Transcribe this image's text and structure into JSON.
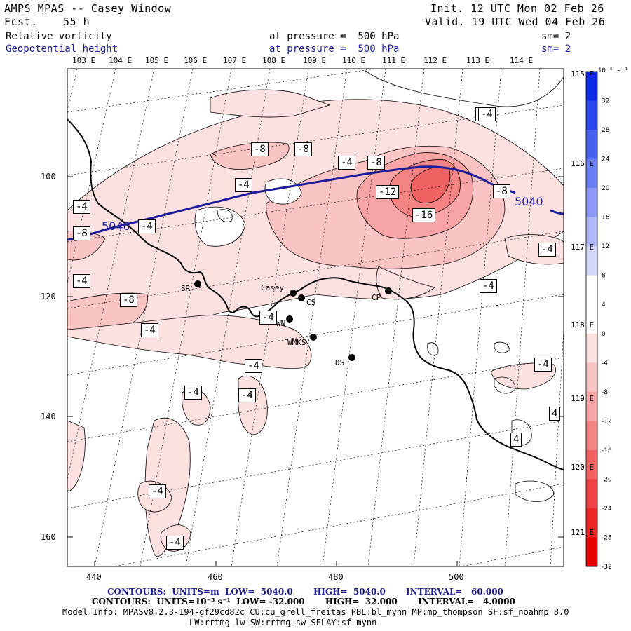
{
  "header": {
    "title": "AMPS MPAS -- Casey Window",
    "forecast_label": "Fcst.",
    "forecast_value": "55 h",
    "init": "Init. 12 UTC Mon 02 Feb 26",
    "valid": "Valid. 19 UTC Wed 04 Feb 26",
    "field1": "Relative vorticity",
    "field2": "Geopotential height",
    "pressure1": "at pressure =  500 hPa",
    "pressure2": "at pressure =  500 hPa",
    "sm1": "sm= 2",
    "sm2": "sm= 2"
  },
  "top_lon_labels": [
    "103 E",
    "104 E",
    "105 E",
    "106 E",
    "107 E",
    "108 E",
    "109 E",
    "110 E",
    "111 E",
    "112 E",
    "113 E",
    "114 E"
  ],
  "right_lon_labels": [
    "115 E",
    "116 E",
    "117 E",
    "118 E",
    "119 E",
    "120 E",
    "121 E"
  ],
  "x_axis": {
    "ticks": [
      "440",
      "460",
      "480",
      "500"
    ]
  },
  "y_axis": {
    "ticks": [
      "100",
      "120",
      "140",
      "160"
    ]
  },
  "colorbar": {
    "unit": "10⁻⁵ s⁻¹",
    "levels": [
      "32",
      "28",
      "24",
      "20",
      "16",
      "12",
      "8",
      "4",
      "0",
      "-4",
      "-8",
      "-12",
      "-16",
      "-20",
      "-24",
      "-28",
      "-32"
    ],
    "colors": [
      "#0a2ae6",
      "#2a47ee",
      "#4663f0",
      "#6a7ff3",
      "#8c9af5",
      "#b0b8f8",
      "#d4d8fb",
      "#ffffff",
      "#ffffff",
      "#fde0e0",
      "#fbc4c4",
      "#f8a4a4",
      "#f48484",
      "#f16262",
      "#ee4242",
      "#ec2424",
      "#e80000"
    ]
  },
  "contour_labels": [
    "-4",
    "-4",
    "-4",
    "-4",
    "-4",
    "-4",
    "-4",
    "-4",
    "-4",
    "-4",
    "-4",
    "-4",
    "-4",
    "-4",
    "-4",
    "-4",
    "-4",
    "-8",
    "-8",
    "-8",
    "-8",
    "-8",
    "-8",
    "-12",
    "-16",
    "4",
    "4"
  ],
  "height_labels": [
    "5040",
    "5040"
  ],
  "stations": [
    "SR",
    "Casey",
    "CS",
    "CP",
    "WN",
    "WMKS",
    "DS"
  ],
  "footer": {
    "line1": "CONTOURS:  UNITS=m  LOW=  5040.0       HIGH=  5040.0       INTERVAL=   60.000",
    "line2": "CONTOURS:  UNITS=10⁻⁵ s⁻¹  LOW= -32.000       HIGH=  32.000       INTERVAL=   4.0000",
    "line3": "Model Info: MPASv8.2.3-194-gf29cd82c CU:cu_grell_freitas PBL:bl_mynn MP:mp_thompson SF:sf_noahmp 8.0",
    "line4": "LW:rrtmg_lw SW:rrtmg_sw SFLAY:sf_mynn"
  }
}
